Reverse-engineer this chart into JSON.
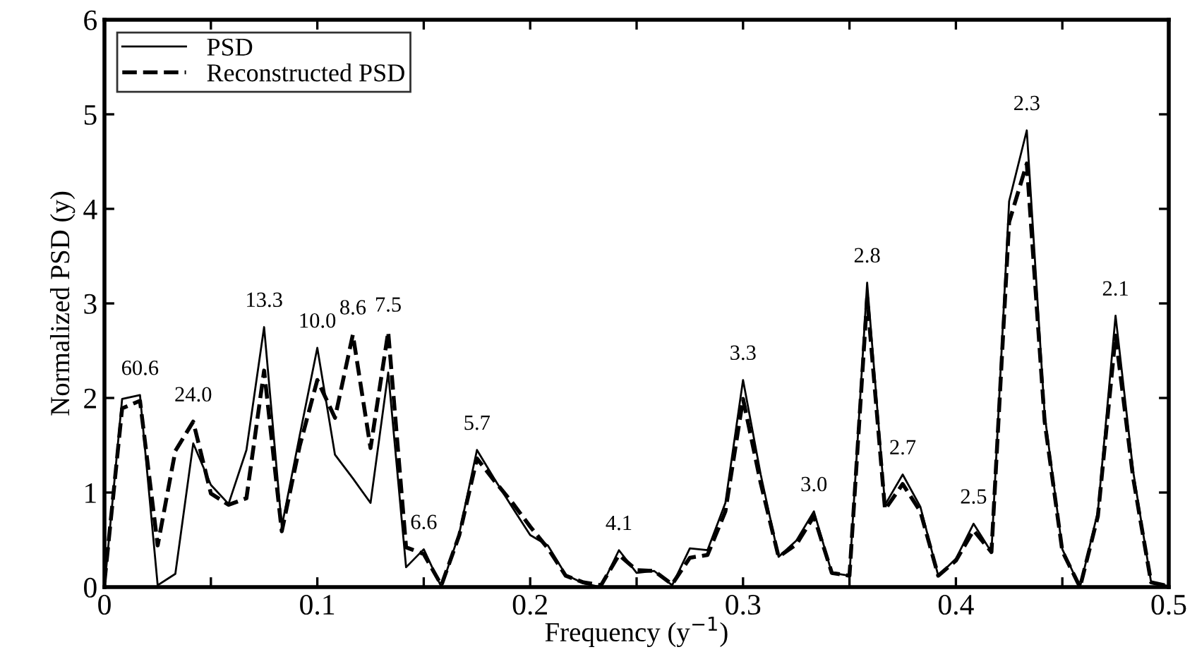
{
  "chart_data": {
    "type": "line",
    "xlabel": "Frequency (y$^{−1}$)",
    "ylabel": "Normalized PSD (y)",
    "x": [
      0,
      0.0083,
      0.0167,
      0.025,
      0.0333,
      0.0417,
      0.05,
      0.0583,
      0.0667,
      0.075,
      0.0833,
      0.0917,
      0.1,
      0.1083,
      0.1167,
      0.125,
      0.1333,
      0.1417,
      0.15,
      0.1583,
      0.1667,
      0.175,
      0.1833,
      0.1917,
      0.2,
      0.2083,
      0.2167,
      0.225,
      0.2333,
      0.2417,
      0.25,
      0.2583,
      0.2667,
      0.275,
      0.2833,
      0.2917,
      0.3,
      0.3083,
      0.3167,
      0.325,
      0.3333,
      0.3417,
      0.35,
      0.3583,
      0.3667,
      0.375,
      0.3833,
      0.3917,
      0.4,
      0.4083,
      0.4167,
      0.425,
      0.4333,
      0.4417,
      0.45,
      0.4583,
      0.4667,
      0.475,
      0.4833,
      0.4917,
      0.5
    ],
    "series": [
      {
        "name": "PSD",
        "color": "#000000",
        "line_style": "solid",
        "values": [
          0,
          1.99,
          2.03,
          0.02,
          0.14,
          1.52,
          1.08,
          0.88,
          1.45,
          2.75,
          0.64,
          1.6,
          2.53,
          1.4,
          1.15,
          0.89,
          2.27,
          0.21,
          0.4,
          0.0,
          0.57,
          1.45,
          1.14,
          0.84,
          0.55,
          0.44,
          0.13,
          0.04,
          0.0,
          0.39,
          0.15,
          0.17,
          0.02,
          0.41,
          0.39,
          0.89,
          2.19,
          1.19,
          0.32,
          0.49,
          0.8,
          0.15,
          0.12,
          3.22,
          0.87,
          1.19,
          0.85,
          0.12,
          0.3,
          0.67,
          0.37,
          4.08,
          4.83,
          1.82,
          0.4,
          0.0,
          0.8,
          2.87,
          1.22,
          0.05,
          0.01
        ]
      },
      {
        "name": "Reconstructed PSD",
        "color": "#000000",
        "line_style": "dashed",
        "values": [
          0.05,
          1.89,
          1.97,
          0.44,
          1.44,
          1.75,
          0.99,
          0.87,
          0.94,
          2.29,
          0.59,
          1.49,
          2.19,
          1.79,
          2.67,
          1.47,
          2.7,
          0.42,
          0.35,
          0.02,
          0.55,
          1.36,
          1.12,
          0.89,
          0.64,
          0.41,
          0.12,
          0.05,
          0.02,
          0.34,
          0.18,
          0.17,
          0.03,
          0.31,
          0.34,
          0.8,
          1.99,
          1.1,
          0.32,
          0.45,
          0.75,
          0.15,
          0.12,
          3.06,
          0.82,
          1.09,
          0.8,
          0.12,
          0.28,
          0.6,
          0.37,
          3.86,
          4.48,
          1.75,
          0.38,
          0.0,
          0.75,
          2.66,
          1.15,
          0.05,
          0.01
        ]
      }
    ],
    "xlim": [
      0,
      0.5
    ],
    "ylim": [
      0,
      6
    ],
    "xticks": [
      0,
      {
        "value": 0.05,
        "label": null
      },
      0.1,
      {
        "value": 0.15,
        "label": null
      },
      0.2,
      {
        "value": 0.25,
        "label": null
      },
      0.3,
      {
        "value": 0.35,
        "label": null
      },
      0.4,
      {
        "value": 0.45,
        "label": null
      },
      0.5
    ],
    "yticks": [
      0,
      1,
      2,
      3,
      4,
      5,
      6
    ],
    "grid": false,
    "legend": "top left",
    "marker": "none",
    "annotations": [
      {
        "text": "60.6",
        "x": 0.0167,
        "y": 2.03
      },
      {
        "text": "24.0",
        "x": 0.0417,
        "y": 1.75
      },
      {
        "text": "13.3",
        "x": 0.075,
        "y": 2.75
      },
      {
        "text": "10.0",
        "x": 0.1,
        "y": 2.53
      },
      {
        "text": "8.6",
        "x": 0.1167,
        "y": 2.67
      },
      {
        "text": "7.5",
        "x": 0.1333,
        "y": 2.7
      },
      {
        "text": "6.6",
        "x": 0.15,
        "y": 0.4
      },
      {
        "text": "5.7",
        "x": 0.175,
        "y": 1.45
      },
      {
        "text": "4.1",
        "x": 0.2417,
        "y": 0.39
      },
      {
        "text": "3.3",
        "x": 0.3,
        "y": 2.19
      },
      {
        "text": "3.0",
        "x": 0.3333,
        "y": 0.8
      },
      {
        "text": "2.8",
        "x": 0.3583,
        "y": 3.22
      },
      {
        "text": "2.7",
        "x": 0.375,
        "y": 1.19
      },
      {
        "text": "2.5",
        "x": 0.4083,
        "y": 0.67
      },
      {
        "text": "2.3",
        "x": 0.4333,
        "y": 4.83
      },
      {
        "text": "2.1",
        "x": 0.475,
        "y": 2.87
      }
    ]
  }
}
